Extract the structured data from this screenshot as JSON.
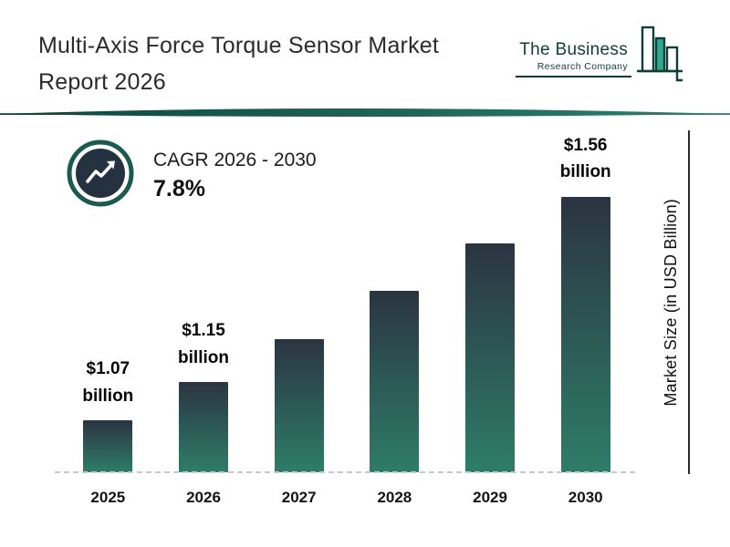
{
  "header": {
    "title_line1": "Multi-Axis Force Torque Sensor Market",
    "title_line2": "Report 2026"
  },
  "logo": {
    "name_line1": "The Business",
    "name_line2": "Research Company"
  },
  "cagr": {
    "label": "CAGR 2026 - 2030",
    "value": "7.8%"
  },
  "chart_data": {
    "type": "bar",
    "title": "Multi-Axis Force Torque Sensor Market Report 2026",
    "categories": [
      "2025",
      "2026",
      "2027",
      "2028",
      "2029",
      "2030"
    ],
    "values": [
      1.07,
      1.15,
      1.24,
      1.34,
      1.44,
      1.56
    ],
    "data_labels": [
      {
        "amount": "$1.07",
        "unit": "billion"
      },
      {
        "amount": "$1.15",
        "unit": "billion"
      },
      null,
      null,
      null,
      {
        "amount": "$1.56",
        "unit": "billion"
      }
    ],
    "xlabel": "",
    "ylabel": "Market Size (in USD Billion)",
    "ylim": [
      0.96,
      1.63
    ],
    "grid": false,
    "legend": false,
    "bar_color_top": "#2b3442",
    "bar_color_bottom": "#2e7d68"
  },
  "colors": {
    "accent_teal_dark": "#0f3e36",
    "accent_teal": "#2e7d68",
    "logo_green": "#2fa98c",
    "badge_inner": "#243140",
    "ink": "#1c1c1c"
  }
}
